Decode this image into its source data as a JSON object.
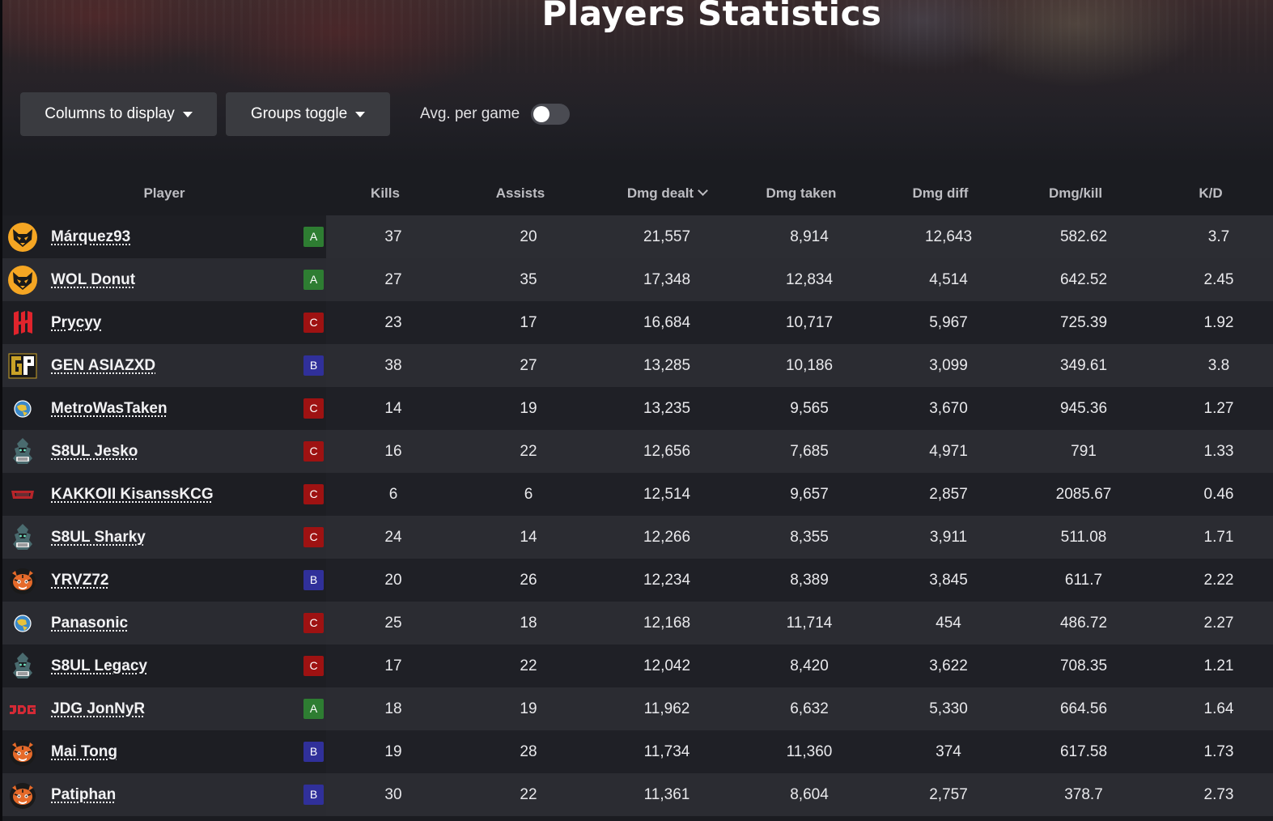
{
  "page_title": "Players Statistics",
  "controls": {
    "columns_button": "Columns to display",
    "groups_button": "Groups toggle",
    "avg_label": "Avg. per game",
    "avg_on": false
  },
  "table": {
    "headers": {
      "player": "Player",
      "kills": "Kills",
      "assists": "Assists",
      "dmg_dealt": "Dmg dealt",
      "dmg_taken": "Dmg taken",
      "dmg_diff": "Dmg diff",
      "dmg_kill": "Dmg/kill",
      "kd": "K/D"
    },
    "sorted_by": "Dmg dealt",
    "sort_direction": "desc",
    "rows": [
      {
        "name": "Márquez93",
        "team_icon": "wolf-logo-icon",
        "group": "A",
        "kills": "37",
        "assists": "20",
        "dmg_dealt": "21,557",
        "dmg_taken": "8,914",
        "dmg_diff": "12,643",
        "dmg_kill": "582.62",
        "kd": "3.7"
      },
      {
        "name": "WOL Donut",
        "team_icon": "wolf-logo-icon",
        "group": "A",
        "kills": "27",
        "assists": "35",
        "dmg_dealt": "17,348",
        "dmg_taken": "12,834",
        "dmg_diff": "4,514",
        "dmg_kill": "642.52",
        "kd": "2.45"
      },
      {
        "name": "Prycyy",
        "team_icon": "red-logo-icon",
        "group": "C",
        "kills": "23",
        "assists": "17",
        "dmg_dealt": "16,684",
        "dmg_taken": "10,717",
        "dmg_diff": "5,967",
        "dmg_kill": "725.39",
        "kd": "1.92"
      },
      {
        "name": "GEN ASIAZXD",
        "team_icon": "gen-logo-icon",
        "group": "B",
        "kills": "38",
        "assists": "27",
        "dmg_dealt": "13,285",
        "dmg_taken": "10,186",
        "dmg_diff": "3,099",
        "dmg_kill": "349.61",
        "kd": "3.8"
      },
      {
        "name": "MetroWasTaken",
        "team_icon": "globe-logo-icon",
        "group": "C",
        "kills": "14",
        "assists": "19",
        "dmg_dealt": "13,235",
        "dmg_taken": "9,565",
        "dmg_diff": "3,670",
        "dmg_kill": "945.36",
        "kd": "1.27"
      },
      {
        "name": "S8UL Jesko",
        "team_icon": "s8ul-logo-icon",
        "group": "C",
        "kills": "16",
        "assists": "22",
        "dmg_dealt": "12,656",
        "dmg_taken": "7,685",
        "dmg_diff": "4,971",
        "dmg_kill": "791",
        "kd": "1.33"
      },
      {
        "name": "KAKKOII KisanssKCG",
        "team_icon": "kakkoii-logo-icon",
        "group": "C",
        "kills": "6",
        "assists": "6",
        "dmg_dealt": "12,514",
        "dmg_taken": "9,657",
        "dmg_diff": "2,857",
        "dmg_kill": "2085.67",
        "kd": "0.46"
      },
      {
        "name": "S8UL Sharky",
        "team_icon": "s8ul-logo-icon",
        "group": "C",
        "kills": "24",
        "assists": "14",
        "dmg_dealt": "12,266",
        "dmg_taken": "8,355",
        "dmg_diff": "3,911",
        "dmg_kill": "511.08",
        "kd": "1.71"
      },
      {
        "name": "YRVZ72",
        "team_icon": "tiger-logo-icon",
        "group": "B",
        "kills": "20",
        "assists": "26",
        "dmg_dealt": "12,234",
        "dmg_taken": "8,389",
        "dmg_diff": "3,845",
        "dmg_kill": "611.7",
        "kd": "2.22"
      },
      {
        "name": "Panasonic",
        "team_icon": "globe-logo-icon",
        "group": "C",
        "kills": "25",
        "assists": "18",
        "dmg_dealt": "12,168",
        "dmg_taken": "11,714",
        "dmg_diff": "454",
        "dmg_kill": "486.72",
        "kd": "2.27"
      },
      {
        "name": "S8UL Legacy",
        "team_icon": "s8ul-logo-icon",
        "group": "C",
        "kills": "17",
        "assists": "22",
        "dmg_dealt": "12,042",
        "dmg_taken": "8,420",
        "dmg_diff": "3,622",
        "dmg_kill": "708.35",
        "kd": "1.21"
      },
      {
        "name": "JDG JonNyR",
        "team_icon": "jdg-logo-icon",
        "group": "A",
        "kills": "18",
        "assists": "19",
        "dmg_dealt": "11,962",
        "dmg_taken": "6,632",
        "dmg_diff": "5,330",
        "dmg_kill": "664.56",
        "kd": "1.64"
      },
      {
        "name": "Mai Tong",
        "team_icon": "tiger-logo-icon",
        "group": "B",
        "kills": "19",
        "assists": "28",
        "dmg_dealt": "11,734",
        "dmg_taken": "11,360",
        "dmg_diff": "374",
        "dmg_kill": "617.58",
        "kd": "1.73"
      },
      {
        "name": "Patiphan",
        "team_icon": "tiger-logo-icon",
        "group": "B",
        "kills": "30",
        "assists": "22",
        "dmg_dealt": "11,361",
        "dmg_taken": "8,604",
        "dmg_diff": "2,757",
        "dmg_kill": "378.7",
        "kd": "2.73"
      }
    ]
  },
  "colors": {
    "background": "#1b1c21",
    "group_A": "#2e7d32",
    "group_B": "#30309a",
    "group_C": "#9e1212"
  }
}
